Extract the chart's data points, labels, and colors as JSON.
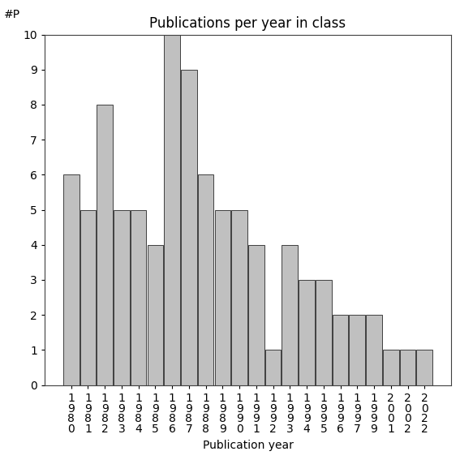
{
  "title": "Publications per year in class",
  "xlabel": "Publication year",
  "ylabel": "#P",
  "categories": [
    "1980",
    "1981",
    "1982",
    "1983",
    "1984",
    "1985",
    "1986",
    "1987",
    "1988",
    "1989",
    "1990",
    "1991",
    "1992",
    "1993",
    "1994",
    "1995",
    "1996",
    "1997",
    "1999",
    "2001",
    "2002",
    "2022"
  ],
  "values": [
    6,
    5,
    8,
    5,
    5,
    4,
    10,
    9,
    6,
    5,
    5,
    4,
    1,
    4,
    3,
    3,
    2,
    2,
    2,
    1,
    1,
    1
  ],
  "bar_color": "#c0c0c0",
  "bar_edge_color": "#404040",
  "ylim": [
    0,
    10
  ],
  "yticks": [
    0,
    1,
    2,
    3,
    4,
    5,
    6,
    7,
    8,
    9,
    10
  ],
  "background_color": "#ffffff",
  "title_fontsize": 12,
  "label_fontsize": 10,
  "tick_fontsize": 10
}
